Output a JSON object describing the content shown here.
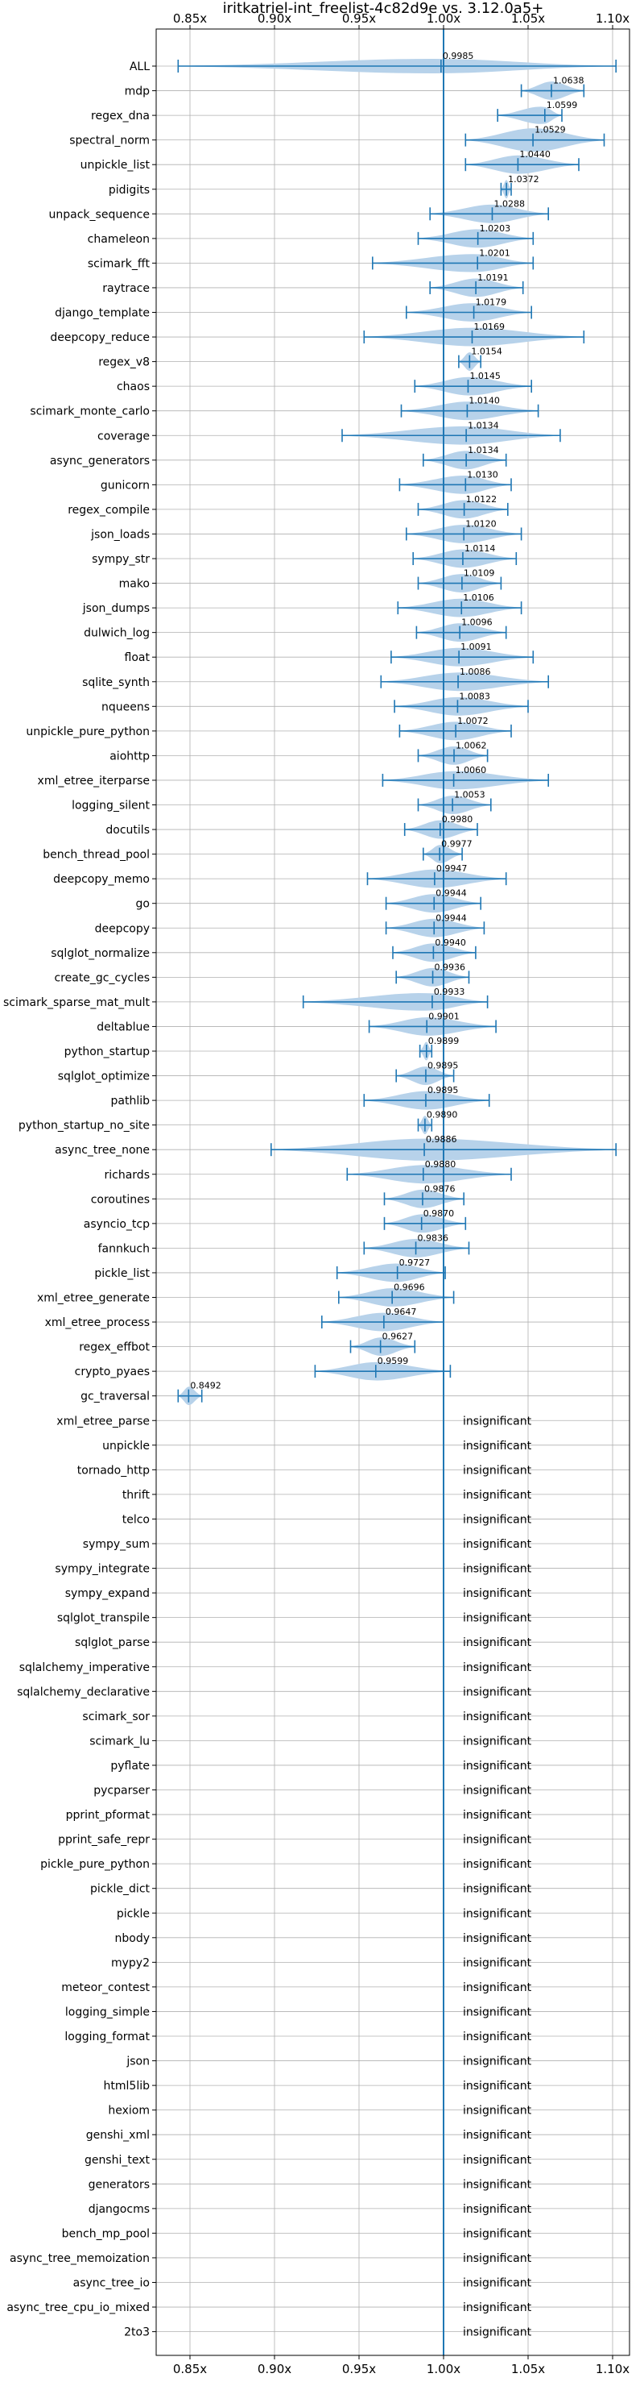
{
  "chart_data": {
    "type": "violin",
    "title": "iritkatriel-int_freelist-4c82d9e vs. 3.12.0a5+",
    "xlim": [
      0.83,
      1.11
    ],
    "xticks": [
      {
        "value": 0.85,
        "label": "0.85x"
      },
      {
        "value": 0.9,
        "label": "0.90x"
      },
      {
        "value": 0.95,
        "label": "0.95x"
      },
      {
        "value": 1.0,
        "label": "1.00x"
      },
      {
        "value": 1.05,
        "label": "1.05x"
      },
      {
        "value": 1.1,
        "label": "1.10x"
      }
    ],
    "reference_line": 1.0,
    "grid": true,
    "insignificant_label": "insignificant",
    "colors": {
      "violin": "#b7d2ea",
      "line": "#1f77b4",
      "grid": "#b0b0b0"
    },
    "benchmarks": [
      {
        "name": "ALL",
        "mean": 0.9985,
        "label": "0.9985",
        "min": 0.843,
        "max": 1.102,
        "width": 0.6
      },
      {
        "name": "mdp",
        "mean": 1.0638,
        "label": "1.0638",
        "min": 1.046,
        "max": 1.083
      },
      {
        "name": "regex_dna",
        "mean": 1.0599,
        "label": "1.0599",
        "min": 1.032,
        "max": 1.07
      },
      {
        "name": "spectral_norm",
        "mean": 1.0529,
        "label": "1.0529",
        "min": 1.013,
        "max": 1.095,
        "width": 0.95
      },
      {
        "name": "unpickle_list",
        "mean": 1.044,
        "label": "1.0440",
        "min": 1.013,
        "max": 1.08
      },
      {
        "name": "pidigits",
        "mean": 1.0372,
        "label": "1.0372",
        "min": 1.034,
        "max": 1.04
      },
      {
        "name": "unpack_sequence",
        "mean": 1.0288,
        "label": "1.0288",
        "min": 0.992,
        "max": 1.062
      },
      {
        "name": "chameleon",
        "mean": 1.0203,
        "label": "1.0203",
        "min": 0.985,
        "max": 1.053
      },
      {
        "name": "scimark_fft",
        "mean": 1.0201,
        "label": "1.0201",
        "min": 0.958,
        "max": 1.053
      },
      {
        "name": "raytrace",
        "mean": 1.0191,
        "label": "1.0191",
        "min": 0.992,
        "max": 1.047
      },
      {
        "name": "django_template",
        "mean": 1.0179,
        "label": "1.0179",
        "min": 0.978,
        "max": 1.052
      },
      {
        "name": "deepcopy_reduce",
        "mean": 1.0169,
        "label": "1.0169",
        "min": 0.953,
        "max": 1.083
      },
      {
        "name": "regex_v8",
        "mean": 1.0154,
        "label": "1.0154",
        "min": 1.009,
        "max": 1.022
      },
      {
        "name": "chaos",
        "mean": 1.0145,
        "label": "1.0145",
        "min": 0.983,
        "max": 1.052
      },
      {
        "name": "scimark_monte_carlo",
        "mean": 1.014,
        "label": "1.0140",
        "min": 0.975,
        "max": 1.056
      },
      {
        "name": "coverage",
        "mean": 1.0134,
        "label": "1.0134",
        "min": 0.94,
        "max": 1.069
      },
      {
        "name": "async_generators",
        "mean": 1.0134,
        "label": "1.0134",
        "min": 0.988,
        "max": 1.037
      },
      {
        "name": "gunicorn",
        "mean": 1.013,
        "label": "1.0130",
        "min": 0.974,
        "max": 1.04
      },
      {
        "name": "regex_compile",
        "mean": 1.0122,
        "label": "1.0122",
        "min": 0.985,
        "max": 1.038
      },
      {
        "name": "json_loads",
        "mean": 1.012,
        "label": "1.0120",
        "min": 0.978,
        "max": 1.046
      },
      {
        "name": "sympy_str",
        "mean": 1.0114,
        "label": "1.0114",
        "min": 0.982,
        "max": 1.043
      },
      {
        "name": "mako",
        "mean": 1.0109,
        "label": "1.0109",
        "min": 0.985,
        "max": 1.034
      },
      {
        "name": "json_dumps",
        "mean": 1.0106,
        "label": "1.0106",
        "min": 0.973,
        "max": 1.046
      },
      {
        "name": "dulwich_log",
        "mean": 1.0096,
        "label": "1.0096",
        "min": 0.984,
        "max": 1.037
      },
      {
        "name": "float",
        "mean": 1.0091,
        "label": "1.0091",
        "min": 0.969,
        "max": 1.053
      },
      {
        "name": "sqlite_synth",
        "mean": 1.0086,
        "label": "1.0086",
        "min": 0.963,
        "max": 1.062
      },
      {
        "name": "nqueens",
        "mean": 1.0083,
        "label": "1.0083",
        "min": 0.971,
        "max": 1.05
      },
      {
        "name": "unpickle_pure_python",
        "mean": 1.0072,
        "label": "1.0072",
        "min": 0.974,
        "max": 1.04
      },
      {
        "name": "aiohttp",
        "mean": 1.0062,
        "label": "1.0062",
        "min": 0.985,
        "max": 1.026
      },
      {
        "name": "xml_etree_iterparse",
        "mean": 1.006,
        "label": "1.0060",
        "min": 0.964,
        "max": 1.062
      },
      {
        "name": "logging_silent",
        "mean": 1.0053,
        "label": "1.0053",
        "min": 0.985,
        "max": 1.028
      },
      {
        "name": "docutils",
        "mean": 0.998,
        "label": "0.9980",
        "min": 0.977,
        "max": 1.02
      },
      {
        "name": "bench_thread_pool",
        "mean": 0.9977,
        "label": "0.9977",
        "min": 0.988,
        "max": 1.011
      },
      {
        "name": "deepcopy_memo",
        "mean": 0.9947,
        "label": "0.9947",
        "min": 0.955,
        "max": 1.037
      },
      {
        "name": "go",
        "mean": 0.9944,
        "label": "0.9944",
        "min": 0.966,
        "max": 1.022
      },
      {
        "name": "deepcopy",
        "mean": 0.9944,
        "label": "0.9944",
        "min": 0.966,
        "max": 1.024
      },
      {
        "name": "sqlglot_normalize",
        "mean": 0.994,
        "label": "0.9940",
        "min": 0.97,
        "max": 1.019
      },
      {
        "name": "create_gc_cycles",
        "mean": 0.9936,
        "label": "0.9936",
        "min": 0.972,
        "max": 1.015
      },
      {
        "name": "scimark_sparse_mat_mult",
        "mean": 0.9933,
        "label": "0.9933",
        "min": 0.917,
        "max": 1.026
      },
      {
        "name": "deltablue",
        "mean": 0.9901,
        "label": "0.9901",
        "min": 0.956,
        "max": 1.031
      },
      {
        "name": "python_startup",
        "mean": 0.9899,
        "label": "0.9899",
        "min": 0.986,
        "max": 0.993
      },
      {
        "name": "sqlglot_optimize",
        "mean": 0.9895,
        "label": "0.9895",
        "min": 0.972,
        "max": 1.006
      },
      {
        "name": "pathlib",
        "mean": 0.9895,
        "label": "0.9895",
        "min": 0.953,
        "max": 1.027
      },
      {
        "name": "python_startup_no_site",
        "mean": 0.989,
        "label": "0.9890",
        "min": 0.985,
        "max": 0.993
      },
      {
        "name": "async_tree_none",
        "mean": 0.9886,
        "label": "0.9886",
        "min": 0.898,
        "max": 1.102,
        "width": 0.9
      },
      {
        "name": "richards",
        "mean": 0.988,
        "label": "0.9880",
        "min": 0.943,
        "max": 1.04
      },
      {
        "name": "coroutines",
        "mean": 0.9876,
        "label": "0.9876",
        "min": 0.965,
        "max": 1.012
      },
      {
        "name": "asyncio_tcp",
        "mean": 0.987,
        "label": "0.9870",
        "min": 0.965,
        "max": 1.013
      },
      {
        "name": "fannkuch",
        "mean": 0.9836,
        "label": "0.9836",
        "min": 0.953,
        "max": 1.015
      },
      {
        "name": "pickle_list",
        "mean": 0.9727,
        "label": "0.9727",
        "min": 0.937,
        "max": 1.001
      },
      {
        "name": "xml_etree_generate",
        "mean": 0.9696,
        "label": "0.9696",
        "min": 0.938,
        "max": 1.006
      },
      {
        "name": "xml_etree_process",
        "mean": 0.9647,
        "label": "0.9647",
        "min": 0.928,
        "max": 1.0
      },
      {
        "name": "regex_effbot",
        "mean": 0.9627,
        "label": "0.9627",
        "min": 0.945,
        "max": 0.983
      },
      {
        "name": "crypto_pyaes",
        "mean": 0.9599,
        "label": "0.9599",
        "min": 0.924,
        "max": 1.004
      },
      {
        "name": "gc_traversal",
        "mean": 0.8492,
        "label": "0.8492",
        "min": 0.843,
        "max": 0.857
      },
      {
        "name": "xml_etree_parse",
        "insignificant": true
      },
      {
        "name": "unpickle",
        "insignificant": true
      },
      {
        "name": "tornado_http",
        "insignificant": true
      },
      {
        "name": "thrift",
        "insignificant": true
      },
      {
        "name": "telco",
        "insignificant": true
      },
      {
        "name": "sympy_sum",
        "insignificant": true
      },
      {
        "name": "sympy_integrate",
        "insignificant": true
      },
      {
        "name": "sympy_expand",
        "insignificant": true
      },
      {
        "name": "sqlglot_transpile",
        "insignificant": true
      },
      {
        "name": "sqlglot_parse",
        "insignificant": true
      },
      {
        "name": "sqlalchemy_imperative",
        "insignificant": true
      },
      {
        "name": "sqlalchemy_declarative",
        "insignificant": true
      },
      {
        "name": "scimark_sor",
        "insignificant": true
      },
      {
        "name": "scimark_lu",
        "insignificant": true
      },
      {
        "name": "pyflate",
        "insignificant": true
      },
      {
        "name": "pycparser",
        "insignificant": true
      },
      {
        "name": "pprint_pformat",
        "insignificant": true
      },
      {
        "name": "pprint_safe_repr",
        "insignificant": true
      },
      {
        "name": "pickle_pure_python",
        "insignificant": true
      },
      {
        "name": "pickle_dict",
        "insignificant": true
      },
      {
        "name": "pickle",
        "insignificant": true
      },
      {
        "name": "nbody",
        "insignificant": true
      },
      {
        "name": "mypy2",
        "insignificant": true
      },
      {
        "name": "meteor_contest",
        "insignificant": true
      },
      {
        "name": "logging_simple",
        "insignificant": true
      },
      {
        "name": "logging_format",
        "insignificant": true
      },
      {
        "name": "json",
        "insignificant": true
      },
      {
        "name": "html5lib",
        "insignificant": true
      },
      {
        "name": "hexiom",
        "insignificant": true
      },
      {
        "name": "genshi_xml",
        "insignificant": true
      },
      {
        "name": "genshi_text",
        "insignificant": true
      },
      {
        "name": "generators",
        "insignificant": true
      },
      {
        "name": "djangocms",
        "insignificant": true
      },
      {
        "name": "bench_mp_pool",
        "insignificant": true
      },
      {
        "name": "async_tree_memoization",
        "insignificant": true
      },
      {
        "name": "async_tree_io",
        "insignificant": true
      },
      {
        "name": "async_tree_cpu_io_mixed",
        "insignificant": true
      },
      {
        "name": "2to3",
        "insignificant": true
      }
    ]
  }
}
